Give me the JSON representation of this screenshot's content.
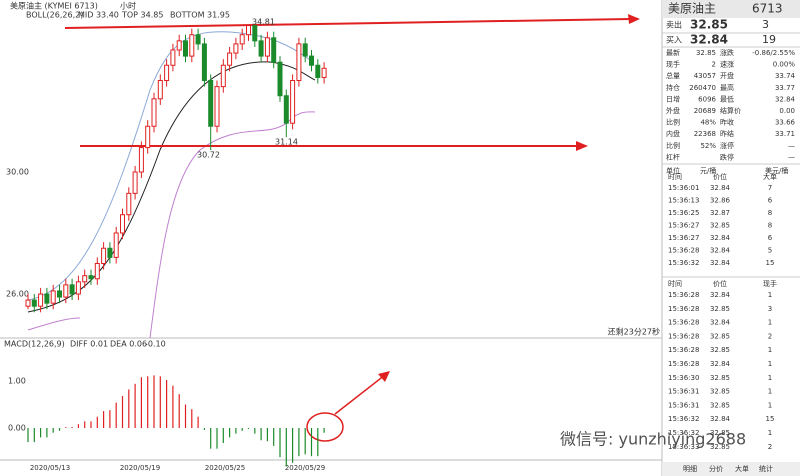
{
  "chart": {
    "title": "美原油主 (KYMEI 6713)",
    "period": "小时",
    "boll": "BOLL(26,26,2)",
    "mid": "MID 33.40",
    "top": "TOP 34.85",
    "bottom": "BOTTOM 31.95",
    "price_labels": [
      "30.00",
      "26.00"
    ],
    "annotations": [
      "34.81",
      "30.72",
      "31.14"
    ],
    "countdown": "还剩23分27秒",
    "macd": "MACD(12,26,9)",
    "diff": "DIFF 0.01",
    "dea": "DEA 0.06",
    "macd_value": "-0.10",
    "macd_labels": [
      "1.00",
      "0.00"
    ],
    "dates": [
      "2020/05/13",
      "2020/05/19",
      "2020/05/25",
      "2020/05/29"
    ],
    "candles": [
      [
        25.6,
        26.0,
        25.5,
        25.8
      ],
      [
        25.8,
        26.0,
        25.4,
        25.6
      ],
      [
        25.6,
        26.2,
        25.4,
        26.0
      ],
      [
        26.0,
        26.2,
        25.5,
        25.7
      ],
      [
        25.7,
        26.3,
        25.5,
        26.1
      ],
      [
        26.1,
        26.3,
        25.7,
        25.9
      ],
      [
        25.9,
        26.5,
        25.7,
        26.3
      ],
      [
        26.3,
        26.5,
        25.8,
        26.0
      ],
      [
        26.0,
        26.6,
        25.8,
        26.4
      ],
      [
        26.4,
        26.8,
        26.2,
        26.6
      ],
      [
        26.6,
        26.8,
        26.3,
        26.5
      ],
      [
        26.5,
        27.2,
        26.3,
        27.0
      ],
      [
        27.0,
        27.7,
        26.8,
        27.5
      ],
      [
        27.5,
        27.7,
        27.0,
        27.2
      ],
      [
        27.2,
        28.2,
        27.0,
        28.0
      ],
      [
        28.0,
        28.8,
        27.8,
        28.6
      ],
      [
        28.6,
        29.5,
        28.4,
        29.3
      ],
      [
        29.3,
        30.2,
        29.1,
        30.0
      ],
      [
        30.0,
        31.0,
        29.8,
        30.8
      ],
      [
        30.8,
        31.7,
        30.6,
        31.5
      ],
      [
        31.5,
        32.6,
        31.3,
        32.4
      ],
      [
        32.4,
        33.2,
        32.2,
        33.0
      ],
      [
        33.0,
        33.7,
        32.8,
        33.5
      ],
      [
        33.5,
        34.2,
        33.3,
        34.0
      ],
      [
        34.0,
        34.5,
        33.8,
        34.3
      ],
      [
        34.3,
        34.5,
        33.6,
        33.8
      ],
      [
        33.8,
        34.7,
        33.6,
        34.5
      ],
      [
        34.5,
        34.7,
        34.0,
        34.2
      ],
      [
        34.2,
        34.4,
        32.8,
        33.0
      ],
      [
        33.0,
        33.2,
        30.72,
        31.5
      ],
      [
        31.5,
        33.0,
        31.3,
        32.8
      ],
      [
        32.8,
        33.7,
        32.6,
        33.5
      ],
      [
        33.5,
        34.1,
        33.3,
        33.9
      ],
      [
        33.9,
        34.4,
        33.7,
        34.2
      ],
      [
        34.2,
        34.7,
        34.0,
        34.5
      ],
      [
        34.5,
        34.81,
        34.3,
        34.8
      ],
      [
        34.8,
        34.8,
        34.1,
        34.3
      ],
      [
        34.3,
        34.5,
        33.6,
        33.8
      ],
      [
        33.8,
        34.6,
        33.6,
        34.4
      ],
      [
        34.4,
        34.6,
        33.4,
        33.6
      ],
      [
        33.6,
        33.8,
        32.3,
        32.5
      ],
      [
        32.5,
        32.7,
        31.14,
        31.6
      ],
      [
        31.6,
        33.2,
        31.4,
        33.0
      ],
      [
        33.0,
        34.4,
        32.8,
        34.2
      ],
      [
        34.2,
        34.4,
        33.6,
        33.8
      ],
      [
        33.8,
        34.0,
        33.3,
        33.5
      ],
      [
        33.5,
        33.7,
        32.9,
        33.1
      ],
      [
        33.1,
        33.6,
        32.9,
        33.4
      ]
    ],
    "macd_hist": [
      -0.3,
      -0.3,
      -0.2,
      -0.2,
      -0.1,
      -0.06,
      0.02,
      0.02,
      0.08,
      0.14,
      0.14,
      0.24,
      0.36,
      0.38,
      0.54,
      0.68,
      0.82,
      0.94,
      1.08,
      1.1,
      1.12,
      1.1,
      1.02,
      0.9,
      0.72,
      0.5,
      0.4,
      0.24,
      -0.04,
      -0.44,
      -0.44,
      -0.32,
      -0.2,
      -0.12,
      -0.06,
      -0.02,
      -0.12,
      -0.26,
      -0.28,
      -0.38,
      -0.62,
      -0.82,
      -0.74,
      -0.6,
      -0.56,
      -0.6,
      -0.6,
      -0.1
    ]
  },
  "quote": {
    "name": "美原油主",
    "code": "6713",
    "sell": [
      "卖出",
      "32.85",
      "3"
    ],
    "buy": [
      "买入",
      "32.84",
      "19"
    ],
    "stats": [
      [
        "最新",
        "32.85",
        "涨跌",
        "-0.86/2.55%"
      ],
      [
        "现手",
        "2",
        "速涨",
        "0.00%"
      ],
      [
        "总量",
        "43057",
        "开盘",
        "33.74"
      ],
      [
        "持仓",
        "260470",
        "最高",
        "33.77"
      ],
      [
        "日增",
        "6096",
        "最低",
        "32.84"
      ],
      [
        "外盘",
        "20689",
        "结算价",
        "0.00"
      ],
      [
        "比例",
        "48%",
        "昨收",
        "33.66"
      ],
      [
        "内盘",
        "22368",
        "昨结",
        "33.71"
      ],
      [
        "比例",
        "52%",
        "涨停",
        "—"
      ],
      [
        "杠杆",
        null,
        "跌停",
        "—"
      ]
    ],
    "unit": [
      "单位",
      "元/桶",
      "美元/桶"
    ]
  },
  "big_trades": {
    "header": [
      "时间",
      "价位",
      "大单"
    ],
    "rows": [
      [
        "15:36:01",
        "32.84",
        "7"
      ],
      [
        "15:36:13",
        "32.86",
        "6"
      ],
      [
        "15:36:25",
        "32.87",
        "8"
      ],
      [
        "15:36:27",
        "32.85",
        "8"
      ],
      [
        "15:36:27",
        "32.84",
        "6"
      ],
      [
        "15:36:28",
        "32.84",
        "5"
      ],
      [
        "15:36:32",
        "32.84",
        "15"
      ]
    ]
  },
  "ticks": {
    "header": [
      "时间",
      "价位",
      "现手"
    ],
    "rows": [
      [
        "15:36:28",
        "32.84",
        "1"
      ],
      [
        "15:36:28",
        "32.85",
        "3"
      ],
      [
        "15:36:28",
        "32.84",
        "1"
      ],
      [
        "15:36:28",
        "32.85",
        "2"
      ],
      [
        "15:36:28",
        "32.85",
        "1"
      ],
      [
        "15:36:28",
        "32.84",
        "1"
      ],
      [
        "15:36:30",
        "32.85",
        "1"
      ],
      [
        "15:36:31",
        "32.85",
        "1"
      ],
      [
        "15:36:31",
        "32.85",
        "1"
      ],
      [
        "15:36:32",
        "32.84",
        "15"
      ],
      [
        "15:36:32",
        "32.85",
        "1"
      ],
      [
        "15:36:33",
        "32.85",
        "2"
      ]
    ]
  },
  "tabs": [
    "明细",
    "分价",
    "大单",
    "统计"
  ],
  "watermark": "微信号: yunzhiying2688"
}
